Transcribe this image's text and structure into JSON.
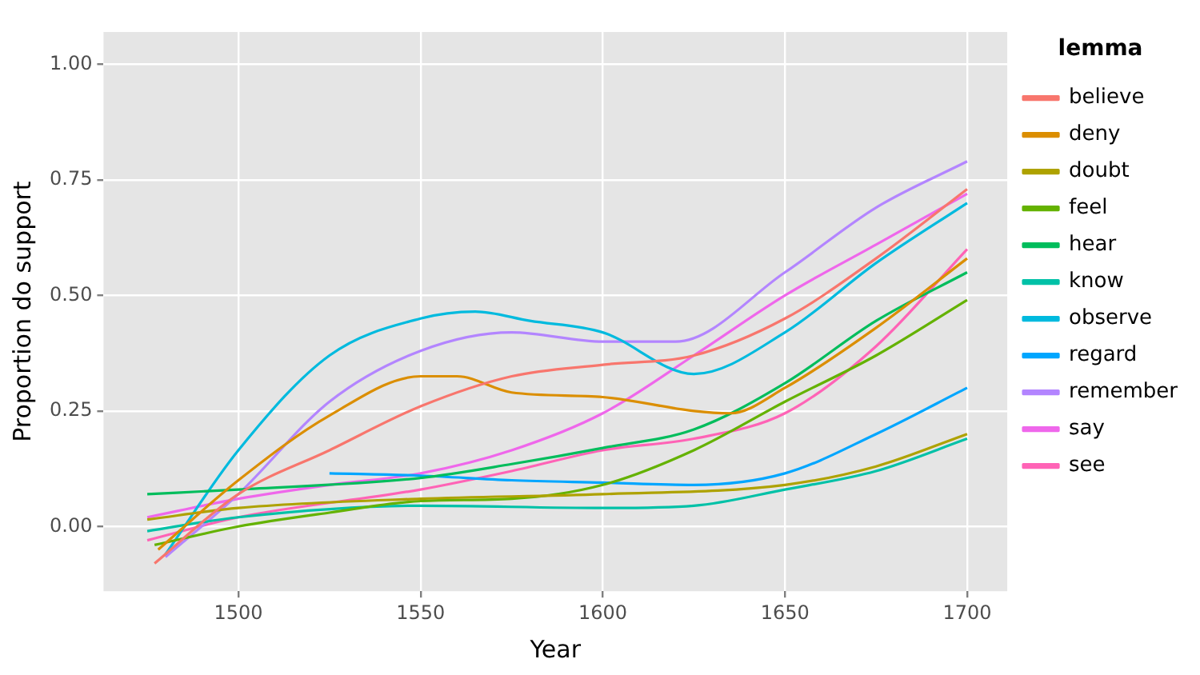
{
  "chart_data": {
    "type": "line",
    "xlabel": "Year",
    "ylabel": "Proportion do support",
    "legend_title": "lemma",
    "legend": "right",
    "grid": true,
    "marker": "none",
    "line_style": "solid",
    "xlim": [
      1463,
      1711
    ],
    "ylim": [
      -0.14,
      1.07
    ],
    "xticks": [
      1500,
      1550,
      1600,
      1650,
      1700
    ],
    "yticks": [
      {
        "value": 0,
        "label": "0.00"
      },
      {
        "value": 0.25,
        "label": "0.25"
      },
      {
        "value": 0.5,
        "label": "0.50"
      },
      {
        "value": 0.75,
        "label": "0.75"
      },
      {
        "value": 1,
        "label": "1.00"
      }
    ],
    "series": [
      {
        "name": "believe",
        "color": "#f8766d",
        "x": [
          1477,
          1500,
          1525,
          1550,
          1575,
          1600,
          1625,
          1650,
          1675,
          1700
        ],
        "values": [
          -0.08,
          0.07,
          0.165,
          0.26,
          0.325,
          0.35,
          0.37,
          0.45,
          0.58,
          0.73
        ]
      },
      {
        "name": "deny",
        "color": "#db8e00",
        "x": [
          1478,
          1500,
          1525,
          1550,
          1560,
          1575,
          1600,
          1625,
          1635,
          1650,
          1675,
          1700
        ],
        "values": [
          -0.05,
          0.1,
          0.24,
          0.325,
          0.325,
          0.29,
          0.28,
          0.25,
          0.245,
          0.3,
          0.43,
          0.58
        ]
      },
      {
        "name": "doubt",
        "color": "#aea200",
        "x": [
          1475,
          1500,
          1550,
          1600,
          1650,
          1675,
          1700
        ],
        "values": [
          0.015,
          0.04,
          0.06,
          0.07,
          0.09,
          0.13,
          0.2
        ]
      },
      {
        "name": "feel",
        "color": "#64b200",
        "x": [
          1477,
          1500,
          1525,
          1550,
          1575,
          1600,
          1625,
          1650,
          1675,
          1700
        ],
        "values": [
          -0.04,
          0,
          0.03,
          0.055,
          0.06,
          0.09,
          0.165,
          0.27,
          0.37,
          0.49
        ]
      },
      {
        "name": "hear",
        "color": "#00bd5c",
        "x": [
          1475,
          1500,
          1550,
          1575,
          1600,
          1625,
          1650,
          1675,
          1700
        ],
        "values": [
          0.07,
          0.08,
          0.105,
          0.135,
          0.17,
          0.21,
          0.31,
          0.445,
          0.55
        ]
      },
      {
        "name": "know",
        "color": "#00c1a7",
        "x": [
          1475,
          1500,
          1550,
          1600,
          1625,
          1650,
          1675,
          1700
        ],
        "values": [
          -0.01,
          0.02,
          0.045,
          0.04,
          0.045,
          0.08,
          0.12,
          0.19
        ]
      },
      {
        "name": "observe",
        "color": "#00badE",
        "x": [
          1480,
          1500,
          1525,
          1550,
          1565,
          1580,
          1600,
          1625,
          1650,
          1675,
          1700
        ],
        "values": [
          -0.06,
          0.165,
          0.37,
          0.45,
          0.465,
          0.445,
          0.42,
          0.33,
          0.42,
          0.57,
          0.7
        ]
      },
      {
        "name": "regard",
        "color": "#00a6ff",
        "x": [
          1525,
          1550,
          1575,
          1600,
          1625,
          1650,
          1675,
          1700
        ],
        "values": [
          0.115,
          0.11,
          0.1,
          0.095,
          0.09,
          0.115,
          0.2,
          0.3
        ]
      },
      {
        "name": "remember",
        "color": "#b385ff",
        "x": [
          1480,
          1500,
          1525,
          1550,
          1575,
          1600,
          1620,
          1650,
          1675,
          1700
        ],
        "values": [
          -0.066,
          0.07,
          0.27,
          0.38,
          0.42,
          0.4,
          0.4,
          0.55,
          0.69,
          0.79
        ]
      },
      {
        "name": "say",
        "color": "#ef67eb",
        "x": [
          1475,
          1500,
          1525,
          1550,
          1575,
          1600,
          1625,
          1650,
          1675,
          1700
        ],
        "values": [
          0.02,
          0.06,
          0.09,
          0.115,
          0.165,
          0.245,
          0.37,
          0.5,
          0.61,
          0.72
        ]
      },
      {
        "name": "see",
        "color": "#ff63b6",
        "x": [
          1475,
          1500,
          1550,
          1575,
          1600,
          1625,
          1650,
          1675,
          1700
        ],
        "values": [
          -0.03,
          0.02,
          0.08,
          0.12,
          0.165,
          0.19,
          0.245,
          0.39,
          0.6
        ]
      }
    ]
  }
}
